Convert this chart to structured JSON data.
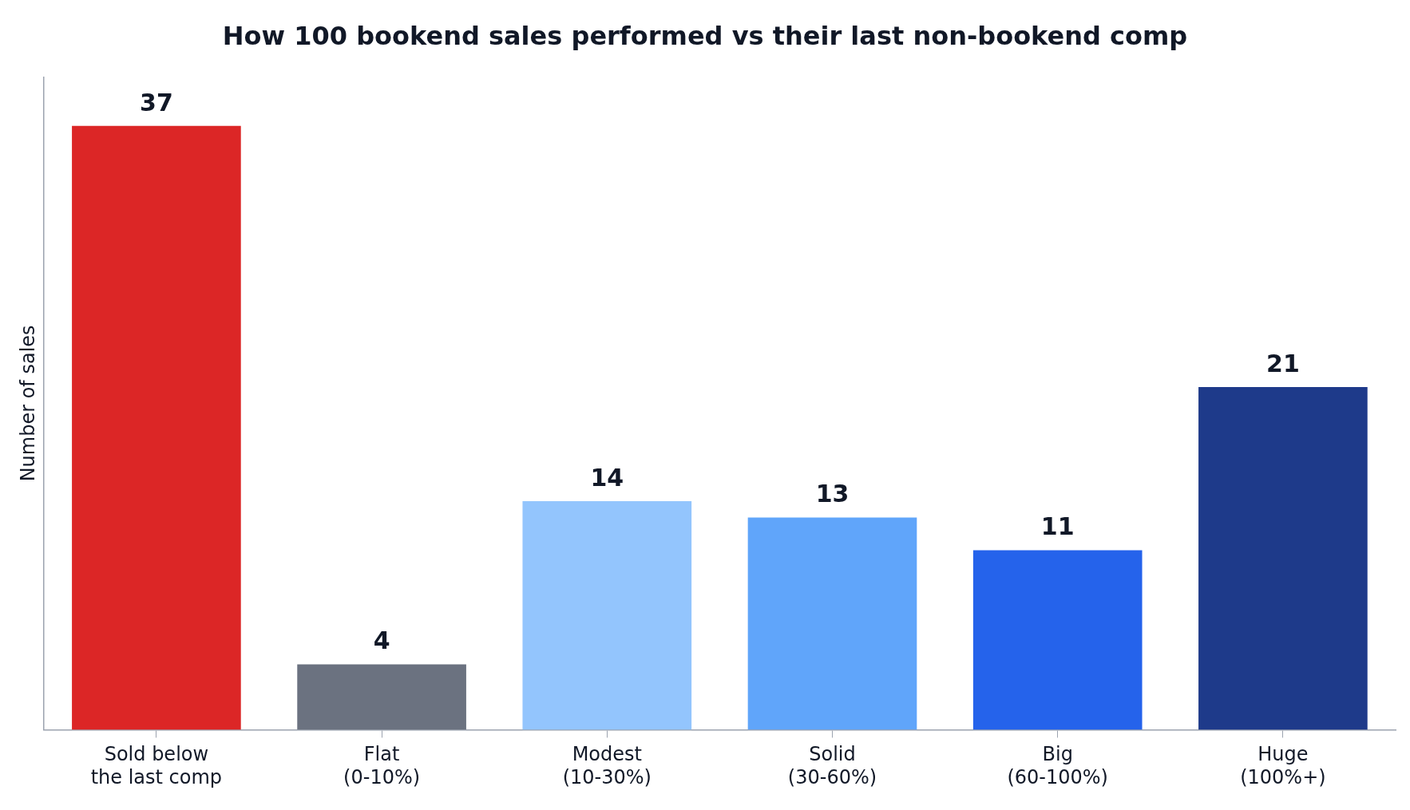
{
  "chart_data": {
    "type": "bar",
    "title": "How 100 bookend sales performed vs their last non-bookend comp",
    "ylabel": "Number of sales",
    "categories": [
      "Sold below\nthe last comp",
      "Flat\n(0-10%)",
      "Modest\n(10-30%)",
      "Solid\n(30-60%)",
      "Big\n(60-100%)",
      "Huge\n(100%+)"
    ],
    "values": [
      37,
      4,
      14,
      13,
      11,
      21
    ],
    "colors": [
      "#dc2626",
      "#6b7280",
      "#93c5fd",
      "#60a5fa",
      "#2563eb",
      "#1e3a8a"
    ],
    "data_labels": true,
    "grid": false,
    "legend": false,
    "tick_labels": "x"
  }
}
